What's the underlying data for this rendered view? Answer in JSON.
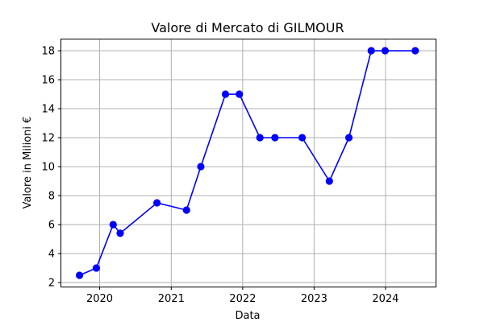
{
  "chart_data": {
    "type": "line",
    "title": "Valore di Mercato di GILMOUR",
    "xlabel": "Data",
    "ylabel": "Valore in Milioni €",
    "x_type": "date",
    "xlim": [
      "2019-06-19",
      "2024-09-13"
    ],
    "ylim": [
      1.72,
      18.78
    ],
    "x_ticks": [
      {
        "date": "2020-01-01",
        "label": "2020"
      },
      {
        "date": "2021-01-01",
        "label": "2021"
      },
      {
        "date": "2022-01-01",
        "label": "2022"
      },
      {
        "date": "2023-01-01",
        "label": "2023"
      },
      {
        "date": "2024-01-01",
        "label": "2024"
      }
    ],
    "y_ticks": [
      2,
      4,
      6,
      8,
      10,
      12,
      14,
      16,
      18
    ],
    "grid": true,
    "color": "#0000ff",
    "series": [
      {
        "x": [
          "2019-09-20",
          "2019-12-15",
          "2020-03-10",
          "2020-04-15",
          "2020-10-20",
          "2021-03-20",
          "2021-06-01",
          "2021-10-05",
          "2021-12-15",
          "2022-03-30",
          "2022-06-15",
          "2022-11-01",
          "2023-03-20",
          "2023-06-28",
          "2023-10-20",
          "2023-12-30",
          "2024-06-01"
        ],
        "y": [
          2.5,
          3,
          6,
          5.4,
          7.5,
          7,
          10,
          15,
          15,
          12,
          12,
          12,
          9,
          12,
          18,
          18,
          18
        ]
      }
    ]
  }
}
